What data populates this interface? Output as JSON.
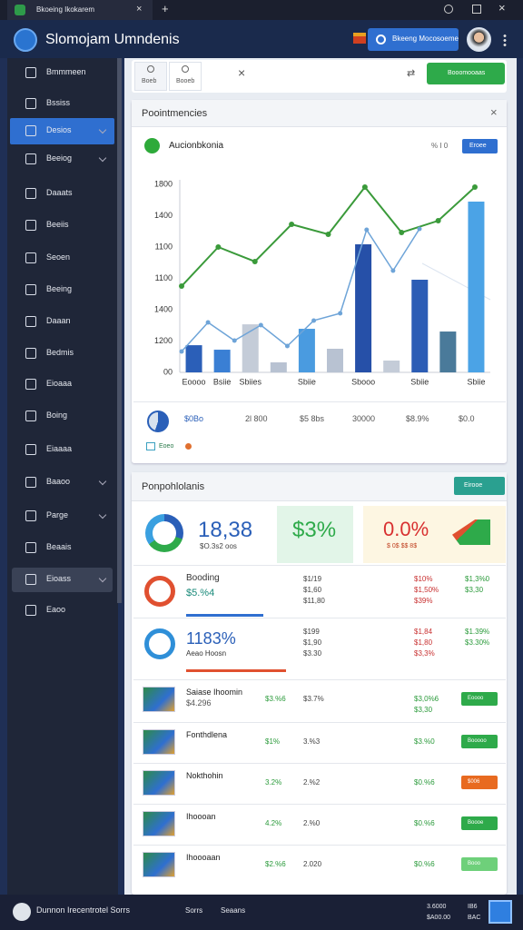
{
  "tab": {
    "title": "Bkoeing Ikokarem"
  },
  "header": {
    "title": "Slomojam Umndenis",
    "button": "Bkeeng Mocosoeme"
  },
  "sidebar": [
    "Bmmmeen",
    "Bssiss",
    "Desios",
    "Beeiog",
    "Daaats",
    "Beeiis",
    "Seoen",
    "Beeing",
    "Daaan",
    "Bedmis",
    "Eioaaa",
    "Boing",
    "Eiaaaa",
    "Baaoo",
    "Parge",
    "Beaais",
    "Eioass",
    "Eaoo"
  ],
  "toolbar": {
    "tabs": [
      "Boeb",
      "Booeb"
    ],
    "button": "Booomooaas"
  },
  "panel1": {
    "title": "Poointmencies",
    "button": "Eroee",
    "corner": "% I 0",
    "stats": [
      "$0Bo",
      "2l 800",
      "$5 8bs",
      "30000",
      "$8.9%",
      "$0.0"
    ],
    "legend": "Eoeo"
  },
  "chart_data": {
    "type": "bar",
    "title": "Aucionbkonia",
    "y_labels": [
      "1800",
      "1400",
      "1100",
      "1100",
      "1400",
      "1200",
      "00"
    ],
    "categories": [
      "Eoooo",
      "Bsiie",
      "Sbiies",
      null,
      "Sbiie",
      null,
      "Sbooo",
      null,
      "Sbiie",
      null,
      "Sbiie"
    ],
    "values": [
      260,
      217,
      460,
      96,
      417,
      226,
      1226,
      113,
      887,
      391,
      1635
    ],
    "colors": [
      "#2b5fb8",
      "#3a7fd4",
      "#c4ccd8",
      "#b8c2d2",
      "#4a9be0",
      "#b8c2d2",
      "#2650a8",
      "#c4ccd8",
      "#2c5db5",
      "#4a7a9a",
      "#4ba3e6"
    ],
    "lines": [
      {
        "color": "#3a9a3a",
        "values": [
          826,
          1200,
          1061,
          1417,
          1322,
          1774,
          1339,
          1452,
          1774
        ]
      },
      {
        "color": "#6ea4d8",
        "values": [
          200,
          478,
          304,
          452,
          252,
          496,
          565,
          1365,
          974,
          1374
        ]
      }
    ],
    "ylim": [
      0,
      1800
    ],
    "grid": true
  },
  "panel2": {
    "title": "Ponpohlolanis",
    "button": "Eirooe",
    "cards": [
      {
        "value": "18,38",
        "sub": "$O.3s2 oos"
      },
      {
        "value": "$3%"
      },
      {
        "value": "0.0%",
        "sub": "$ 0$ $$ 8$"
      }
    ],
    "rows": [
      {
        "name": "Booding",
        "sub": "$5.%4",
        "cols": [
          [],
          [
            "$1/19",
            "$1,60",
            "$11,80"
          ],
          [
            "$10%",
            "$1,50%",
            "$39%"
          ],
          [
            "$1,3%0",
            "$3,30"
          ]
        ]
      },
      {
        "name": "1183%",
        "sub": "Aeao Hoosn",
        "cols": [
          [],
          [
            "$199",
            "$1,90",
            "$3.30"
          ],
          [
            "$1,84",
            "$1,80",
            "$3,3%"
          ],
          [
            "$1.39%",
            "$3.30%"
          ]
        ]
      },
      {
        "name": "Saiase Ihoomin",
        "sub": "$4.296",
        "cols": [
          [
            "$3.%6"
          ],
          [
            "$3.7%"
          ],
          [
            "$3,0%6",
            "$3,30"
          ],
          []
        ],
        "badge": "Eoooo"
      },
      {
        "name": "Fonthdlena",
        "cols": [
          [
            "$1%"
          ],
          [
            "3.%3"
          ],
          [
            "$3.%0"
          ],
          []
        ],
        "badge": "Booooo"
      },
      {
        "name": "Nokthohin",
        "cols": [
          [
            "3.2%"
          ],
          [
            "2.%2"
          ],
          [
            "$0.%6"
          ],
          []
        ],
        "badge": "$006"
      },
      {
        "name": "Ihoooan",
        "cols": [
          [
            "4.2%"
          ],
          [
            "2.%0"
          ],
          [
            "$0.%6"
          ],
          []
        ],
        "badge": "Boooe"
      },
      {
        "name": "Ihoooaan",
        "cols": [
          [
            "$2.%6"
          ],
          [
            "2.020"
          ],
          [
            "$0.%6"
          ],
          []
        ],
        "badge": "Booo"
      }
    ]
  },
  "footer": {
    "left": "Dunnon Irecentrotel Sorrs",
    "items": [
      "Sorrs",
      "Seaans"
    ],
    "right": [
      "3.6000",
      "$A00.00"
    ],
    "right2": [
      "IB6",
      "BAC"
    ]
  }
}
